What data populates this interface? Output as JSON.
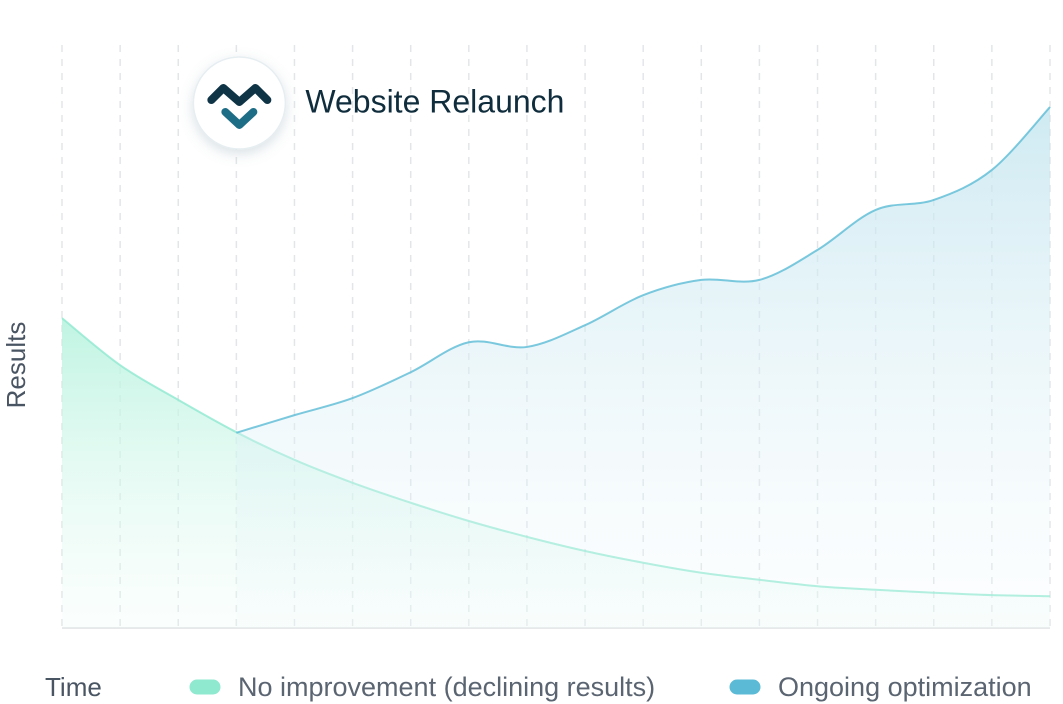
{
  "chart_data": {
    "type": "area",
    "xlabel": "Time",
    "ylabel": "Results",
    "categories": [
      null,
      null,
      null,
      null,
      null,
      null,
      null,
      null,
      null,
      null,
      null,
      null,
      null,
      null,
      null,
      null,
      null,
      null
    ],
    "series": [
      {
        "name": "No improvement (declining results)",
        "color": "#8ee9cf",
        "values": [
          52.7,
          44.7,
          38.8,
          33.3,
          28.6,
          24.7,
          21.3,
          18.2,
          15.5,
          13.1,
          11.1,
          9.4,
          8.2,
          7.1,
          6.5,
          6.0,
          5.6,
          5.4
        ]
      },
      {
        "name": "Ongoing optimization",
        "color": "#5bbbd6",
        "values": [
          null,
          null,
          null,
          33.2,
          36.2,
          39.1,
          43.5,
          48.6,
          47.8,
          51.5,
          56.6,
          59.2,
          59.2,
          64.3,
          71.1,
          72.8,
          77.9,
          88.6
        ]
      }
    ],
    "ylim": [
      0,
      100
    ],
    "grid": true,
    "annotations": [
      {
        "text": "Website Relaunch",
        "at": 3
      }
    ]
  }
}
